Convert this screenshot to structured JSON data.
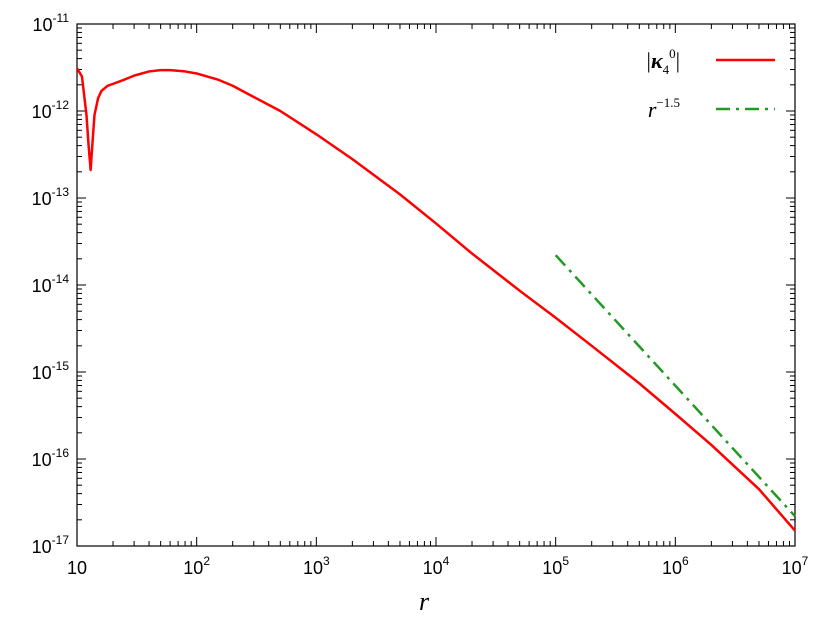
{
  "chart_data": {
    "type": "line",
    "title": "",
    "xlabel": "r",
    "ylabel": "",
    "x_scale": "log",
    "y_scale": "log",
    "xlim": [
      10,
      10000000
    ],
    "ylim": [
      1e-17,
      1e-11
    ],
    "x_ticks": [
      {
        "value": 10,
        "base": "10",
        "exp": ""
      },
      {
        "value": 100,
        "base": "10",
        "exp": "2"
      },
      {
        "value": 1000,
        "base": "10",
        "exp": "3"
      },
      {
        "value": 10000,
        "base": "10",
        "exp": "4"
      },
      {
        "value": 100000,
        "base": "10",
        "exp": "5"
      },
      {
        "value": 1000000,
        "base": "10",
        "exp": "6"
      },
      {
        "value": 10000000,
        "base": "10",
        "exp": "7"
      }
    ],
    "y_ticks": [
      {
        "value": 1e-11,
        "base": "10",
        "exp": "-11"
      },
      {
        "value": 1e-12,
        "base": "10",
        "exp": "-12"
      },
      {
        "value": 1e-13,
        "base": "10",
        "exp": "-13"
      },
      {
        "value": 1e-14,
        "base": "10",
        "exp": "-14"
      },
      {
        "value": 1e-15,
        "base": "10",
        "exp": "-15"
      },
      {
        "value": 1e-16,
        "base": "10",
        "exp": "-16"
      },
      {
        "value": 1e-17,
        "base": "10",
        "exp": "-17"
      }
    ],
    "grid": false,
    "legend_position": "top-right",
    "series": [
      {
        "name": "|κ4 0|",
        "legend": {
          "bar_open": "|",
          "symbol": "κ",
          "subscript": "4",
          "superscript": "0",
          "bar_close": "|"
        },
        "color": "#ff0000",
        "style": "solid",
        "x": [
          10,
          11,
          12,
          12.5,
          13,
          13.5,
          14,
          15,
          16,
          18,
          20,
          25,
          30,
          40,
          50,
          60,
          80,
          100,
          150,
          200,
          300,
          500,
          1000,
          2000,
          5000,
          10000,
          20000,
          50000,
          100000,
          200000,
          500000,
          1000000,
          2000000,
          5000000,
          10000000
        ],
        "y": [
          3.1e-12,
          2.5e-12,
          9e-13,
          4e-13,
          2.1e-13,
          4.5e-13,
          9e-13,
          1.4e-12,
          1.7e-12,
          1.95e-12,
          2.05e-12,
          2.3e-12,
          2.55e-12,
          2.85e-12,
          2.95e-12,
          2.95e-12,
          2.85e-12,
          2.7e-12,
          2.3e-12,
          1.95e-12,
          1.45e-12,
          1e-12,
          5.4e-13,
          2.8e-13,
          1.1e-13,
          5.1e-14,
          2.3e-14,
          8.6e-15,
          4.2e-15,
          2e-15,
          7.4e-16,
          3.3e-16,
          1.45e-16,
          4.5e-17,
          1.5e-17
        ]
      },
      {
        "name": "r^-1.5",
        "legend": {
          "base": "r",
          "exponent": "−1.5"
        },
        "color": "#229922",
        "style": "dash-dot",
        "x": [
          100000,
          10000000
        ],
        "y": [
          2.2e-14,
          2.2e-17
        ]
      }
    ]
  }
}
